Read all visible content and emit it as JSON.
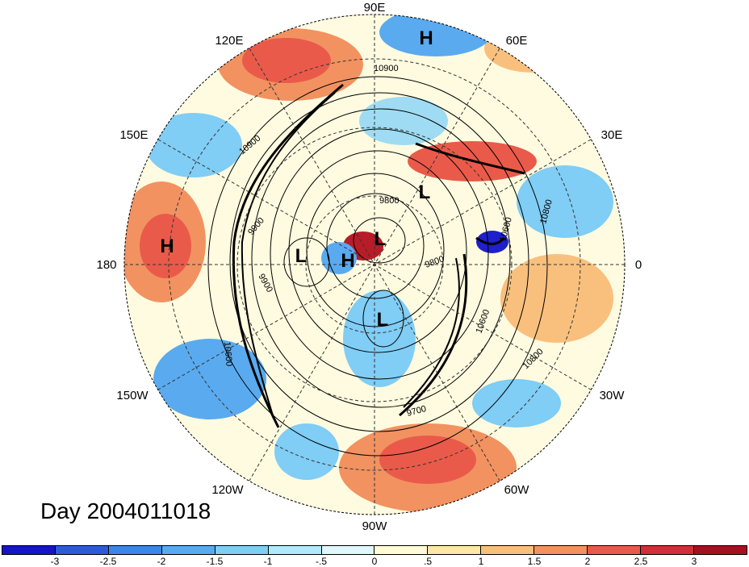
{
  "map": {
    "projection": "polar stereographic (northern hemisphere)",
    "longitude_labels": [
      {
        "text": "90E"
      },
      {
        "text": "60E"
      },
      {
        "text": "30E"
      },
      {
        "text": "0"
      },
      {
        "text": "30W"
      },
      {
        "text": "60W"
      },
      {
        "text": "90W"
      },
      {
        "text": "120W"
      },
      {
        "text": "150W"
      },
      {
        "text": "180"
      },
      {
        "text": "150E"
      },
      {
        "text": "120E"
      }
    ],
    "pressure_centers": [
      "H",
      "H",
      "L",
      "L",
      "H",
      "L",
      "L"
    ],
    "contour_labels": [
      "10900",
      "10900",
      "9900",
      "9900",
      "9800",
      "9800",
      "10600",
      "10800",
      "10600",
      "10800",
      "9700",
      "10600"
    ],
    "colors": {
      "strong_negative": "#1f20c9",
      "negative": "#4e9de6",
      "weak_negative": "#9fdcf3",
      "neutral": "#fffbe0",
      "weak_positive": "#f6c88c",
      "positive": "#ea5a4a",
      "strong_positive": "#b81c28"
    }
  },
  "day_label": "Day 2004011018",
  "colorbar": {
    "colors": [
      "#1414c8",
      "#2a5cd9",
      "#3d86e6",
      "#5aaaef",
      "#80cdf5",
      "#aeeafa",
      "#e0f8fb",
      "#fffbd6",
      "#fde6a7",
      "#f9c07d",
      "#f29261",
      "#ea5a4a",
      "#d22e36",
      "#a6111f"
    ],
    "tick_labels": [
      "-3",
      "-2.5",
      "-2",
      "-1.5",
      "-1",
      "-.5",
      "0",
      ".5",
      "1",
      "1.5",
      "2",
      "2.5",
      "3"
    ]
  }
}
